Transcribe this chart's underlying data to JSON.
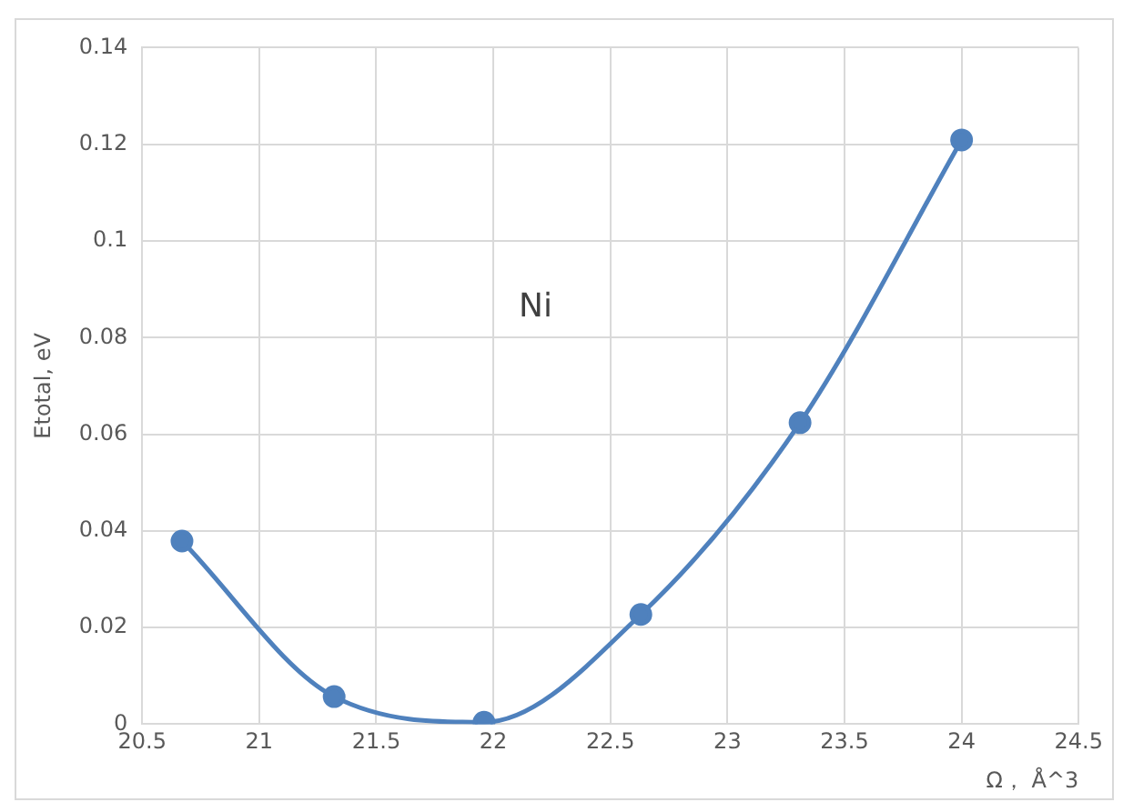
{
  "chart_data": {
    "type": "line",
    "xlabel": "Ω， Å^3",
    "ylabel": "Etotal, eV",
    "annotations": [
      "Ni"
    ],
    "x": [
      20.67,
      21.32,
      21.96,
      22.63,
      23.31,
      24.0
    ],
    "series": [
      {
        "color": "#4f81bd",
        "values": [
          0.0379,
          0.0057,
          0.0004,
          0.0227,
          0.0624,
          0.1209
        ]
      }
    ],
    "xlim": [
      20.5,
      24.5
    ],
    "xticks": [
      20.5,
      21,
      21.5,
      22,
      22.5,
      23,
      23.5,
      24,
      24.5
    ],
    "ylim": [
      0,
      0.14
    ],
    "yticks": [
      0,
      0.02,
      0.04,
      0.06,
      0.08,
      0.1,
      0.12,
      0.14
    ],
    "grid": true,
    "legend": false,
    "marker": "circle",
    "line_style": "solid"
  }
}
